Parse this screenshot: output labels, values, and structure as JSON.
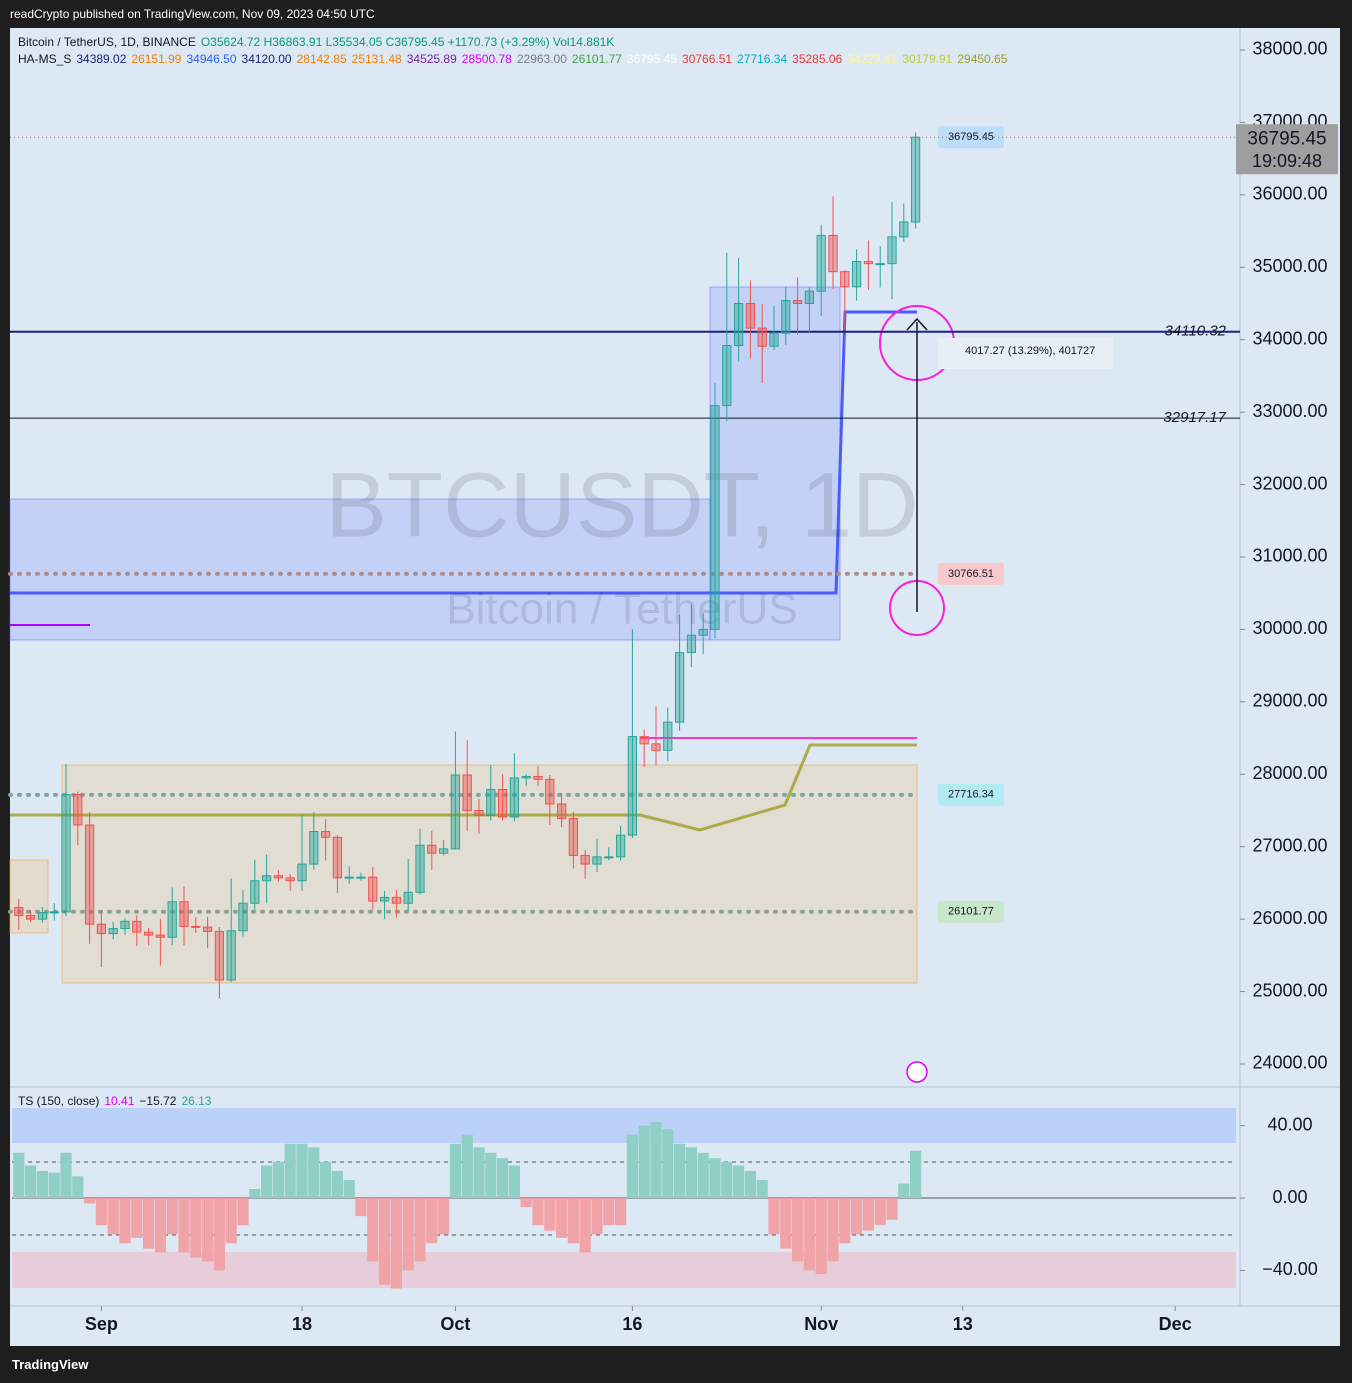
{
  "header": "readCrypto published on TradingView.com, Nov 09, 2023 04:50 UTC",
  "footer": "TradingView",
  "chart_data": [
    {
      "type": "candlestick",
      "title": "Bitcoin / TetherUS, 1D, BINANCE",
      "ohlc_text": "O35624.72 H36863.91 L35534.05 C36795.45 +1170.73 (+3.29%) Vol14.881K",
      "indicator_name": "HA-MS_S",
      "indicator_values": [
        {
          "text": "34389.02",
          "color": "#1a237e"
        },
        {
          "text": "26151.99",
          "color": "#f57c00"
        },
        {
          "text": "34946.50",
          "color": "#2962ff"
        },
        {
          "text": "34120.00",
          "color": "#1a237e"
        },
        {
          "text": "28142.85",
          "color": "#f57c00"
        },
        {
          "text": "25131.48",
          "color": "#f57c00"
        },
        {
          "text": "34525.89",
          "color": "#7b1fa2"
        },
        {
          "text": "28500.78",
          "color": "#d500f9"
        },
        {
          "text": "22963.00",
          "color": "#787b86"
        },
        {
          "text": "26101.77",
          "color": "#43a047"
        },
        {
          "text": "36795.45",
          "color": "#ffffff"
        },
        {
          "text": "30766.51",
          "color": "#e53935"
        },
        {
          "text": "27716.34",
          "color": "#00acc1"
        },
        {
          "text": "35285.06",
          "color": "#e53935"
        },
        {
          "text": "34229.41",
          "color": "#fff59d"
        },
        {
          "text": "30179.91",
          "color": "#c0ca33"
        },
        {
          "text": "29450.65",
          "color": "#9e9d24"
        }
      ],
      "watermark": "BTCUSDT, 1D",
      "watermark_subtitle": "Bitcoin / TetherUS",
      "x": [
        "2023-08-25",
        "2023-08-26",
        "2023-08-27",
        "2023-08-28",
        "2023-08-29",
        "2023-08-30",
        "2023-08-31",
        "2023-09-01",
        "2023-09-02",
        "2023-09-03",
        "2023-09-04",
        "2023-09-05",
        "2023-09-06",
        "2023-09-07",
        "2023-09-08",
        "2023-09-09",
        "2023-09-10",
        "2023-09-11",
        "2023-09-12",
        "2023-09-13",
        "2023-09-14",
        "2023-09-15",
        "2023-09-16",
        "2023-09-17",
        "2023-09-18",
        "2023-09-19",
        "2023-09-20",
        "2023-09-21",
        "2023-09-22",
        "2023-09-23",
        "2023-09-24",
        "2023-09-25",
        "2023-09-26",
        "2023-09-27",
        "2023-09-28",
        "2023-09-29",
        "2023-09-30",
        "2023-10-01",
        "2023-10-02",
        "2023-10-03",
        "2023-10-04",
        "2023-10-05",
        "2023-10-06",
        "2023-10-07",
        "2023-10-08",
        "2023-10-09",
        "2023-10-10",
        "2023-10-11",
        "2023-10-12",
        "2023-10-13",
        "2023-10-14",
        "2023-10-15",
        "2023-10-16",
        "2023-10-17",
        "2023-10-18",
        "2023-10-19",
        "2023-10-20",
        "2023-10-21",
        "2023-10-22",
        "2023-10-23",
        "2023-10-24",
        "2023-10-25",
        "2023-10-26",
        "2023-10-27",
        "2023-10-28",
        "2023-10-29",
        "2023-10-30",
        "2023-10-31",
        "2023-11-01",
        "2023-11-02",
        "2023-11-03",
        "2023-11-04",
        "2023-11-05",
        "2023-11-06",
        "2023-11-07",
        "2023-11-08",
        "2023-11-09"
      ],
      "open": [
        26160,
        26050,
        26000,
        26090,
        26100,
        27720,
        27300,
        25930,
        25800,
        25870,
        25970,
        25820,
        25780,
        25750,
        26240,
        25900,
        25890,
        25830,
        25160,
        25840,
        26220,
        26530,
        26600,
        26570,
        26530,
        26760,
        27210,
        27130,
        26570,
        26580,
        26580,
        26250,
        26300,
        26220,
        26370,
        27020,
        26910,
        26970,
        27990,
        27500,
        27430,
        27790,
        27410,
        27950,
        27970,
        27930,
        27590,
        27390,
        26880,
        26760,
        26860,
        26860,
        27160,
        28520,
        28420,
        28330,
        28720,
        29680,
        29920,
        30000,
        33090,
        33920,
        34500,
        34160,
        33910,
        34090,
        34540,
        34500,
        34670,
        35440,
        34940,
        34730,
        35080,
        35050,
        35050,
        35420,
        35624.72
      ],
      "high": [
        26280,
        26120,
        26170,
        26220,
        28140,
        27760,
        27480,
        26120,
        25960,
        26010,
        26050,
        25880,
        26000,
        26440,
        26450,
        26030,
        26030,
        25890,
        26560,
        26400,
        26820,
        26890,
        26680,
        26620,
        27440,
        27480,
        27380,
        27160,
        26730,
        26640,
        26720,
        26390,
        26400,
        26830,
        27250,
        27220,
        27090,
        28590,
        28470,
        27660,
        28130,
        28000,
        28290,
        28000,
        28110,
        27990,
        27740,
        27480,
        26950,
        27110,
        26990,
        27290,
        30000,
        28620,
        28940,
        28920,
        30200,
        30340,
        30220,
        33400,
        35200,
        35130,
        34820,
        34490,
        34470,
        34730,
        34860,
        34720,
        35590,
        35980,
        34960,
        35250,
        35370,
        35290,
        35900,
        35880,
        36863.91
      ],
      "low": [
        25850,
        25960,
        25950,
        25980,
        26040,
        27020,
        25660,
        25340,
        25720,
        25780,
        25630,
        25640,
        25360,
        25640,
        25640,
        25810,
        25600,
        24900,
        25130,
        25760,
        26130,
        26220,
        26520,
        26390,
        26390,
        26680,
        26810,
        26360,
        26490,
        26530,
        26130,
        26000,
        26020,
        26110,
        26340,
        26680,
        26880,
        26960,
        27220,
        27180,
        27360,
        27360,
        27350,
        27840,
        27840,
        27300,
        27270,
        26700,
        26560,
        26650,
        26810,
        26810,
        27120,
        28100,
        28130,
        28180,
        28600,
        29480,
        29660,
        29880,
        32880,
        33700,
        33740,
        33400,
        33860,
        33930,
        34070,
        34090,
        34330,
        34700,
        34130,
        34540,
        34690,
        34720,
        34560,
        35350,
        35534.05
      ],
      "close": [
        26050,
        26000,
        26090,
        26100,
        27720,
        27300,
        25930,
        25800,
        25870,
        25970,
        25820,
        25780,
        25750,
        26240,
        25900,
        25890,
        25830,
        25160,
        25840,
        26220,
        26530,
        26600,
        26570,
        26530,
        26760,
        27210,
        27130,
        26570,
        26580,
        26580,
        26250,
        26300,
        26220,
        26370,
        27020,
        26910,
        26970,
        27990,
        27500,
        27430,
        27790,
        27410,
        27950,
        27970,
        27930,
        27590,
        27390,
        26880,
        26760,
        26860,
        26860,
        27160,
        28520,
        28420,
        28330,
        28720,
        29680,
        29920,
        30000,
        33090,
        33920,
        34500,
        34160,
        33910,
        34090,
        34540,
        34500,
        34670,
        35440,
        34940,
        34730,
        35080,
        35050,
        35050,
        35420,
        35625,
        36795.45
      ],
      "up_color": "#26a69a",
      "down_color": "#ef5350",
      "xlim": [
        "2023-08-24",
        "2023-12-07"
      ],
      "xticks": [
        {
          "value": "2023-09-01",
          "label": "Sep"
        },
        {
          "value": "2023-09-18",
          "label": "18"
        },
        {
          "value": "2023-10-01",
          "label": "Oct"
        },
        {
          "value": "2023-10-16",
          "label": "16"
        },
        {
          "value": "2023-11-01",
          "label": "Nov"
        },
        {
          "value": "2023-11-13",
          "label": "13"
        },
        {
          "value": "2023-12-01",
          "label": "Dec"
        }
      ],
      "ylim": [
        23710,
        38276
      ],
      "yticks": [
        {
          "value": 24000,
          "label": "24000.00"
        },
        {
          "value": 25000,
          "label": "25000.00"
        },
        {
          "value": 26000,
          "label": "26000.00"
        },
        {
          "value": 27000,
          "label": "27000.00"
        },
        {
          "value": 28000,
          "label": "28000.00"
        },
        {
          "value": 29000,
          "label": "29000.00"
        },
        {
          "value": 30000,
          "label": "30000.00"
        },
        {
          "value": 31000,
          "label": "31000.00"
        },
        {
          "value": 32000,
          "label": "32000.00"
        },
        {
          "value": 33000,
          "label": "33000.00"
        },
        {
          "value": 34000,
          "label": "34000.00"
        },
        {
          "value": 35000,
          "label": "35000.00"
        },
        {
          "value": 36000,
          "label": "36000.00"
        },
        {
          "value": 37000,
          "label": "37000.00"
        },
        {
          "value": 38000,
          "label": "38000.00"
        }
      ],
      "levels": [
        {
          "value": 34110.32,
          "color": "#1a237e"
        },
        {
          "value": 32917.17,
          "color": "#131722"
        }
      ],
      "price_tags": [
        {
          "value": 36795.45,
          "color": "#bbdefb"
        },
        {
          "value": 30766.51,
          "color": "#f8c9cc"
        },
        {
          "value": 27716.34,
          "color": "#b2ebf2"
        },
        {
          "value": 26101.77,
          "color": "#c8e6c9"
        }
      ],
      "countdown": "19:09:48",
      "measure": "4017.27 (13.29%), 401727"
    },
    {
      "type": "bar",
      "title": "TS (150, close)",
      "legend_values": [
        {
          "text": "10.41",
          "color": "#d500f9"
        },
        {
          "text": "−15.72",
          "color": "#131722"
        },
        {
          "text": "26.13",
          "color": "#26a69a"
        }
      ],
      "values": [
        25,
        18,
        15,
        14,
        25,
        12,
        -3,
        -15,
        -20,
        -25,
        -22,
        -28,
        -30,
        -20,
        -30,
        -33,
        -35,
        -40,
        -25,
        -15,
        5,
        18,
        20,
        30,
        30,
        28,
        20,
        15,
        10,
        -10,
        -35,
        -48,
        -50,
        -40,
        -35,
        -25,
        -20,
        30,
        35,
        28,
        25,
        22,
        18,
        -5,
        -15,
        -18,
        -22,
        -25,
        -30,
        -20,
        -15,
        -15,
        35,
        40,
        42,
        38,
        30,
        28,
        25,
        22,
        20,
        18,
        15,
        10,
        -20,
        -28,
        -35,
        -40,
        -42,
        -35,
        -25,
        -20,
        -18,
        -15,
        -12,
        8,
        26.13
      ],
      "positive_color": "#8fcfc6",
      "negative_color": "#f0a4a8",
      "ylim": [
        -59.1,
        60.8
      ],
      "yticks": [
        {
          "value": 40,
          "label": "40.00"
        },
        {
          "value": 0,
          "label": "0.00"
        },
        {
          "value": -40,
          "label": "−40.00"
        }
      ]
    }
  ]
}
